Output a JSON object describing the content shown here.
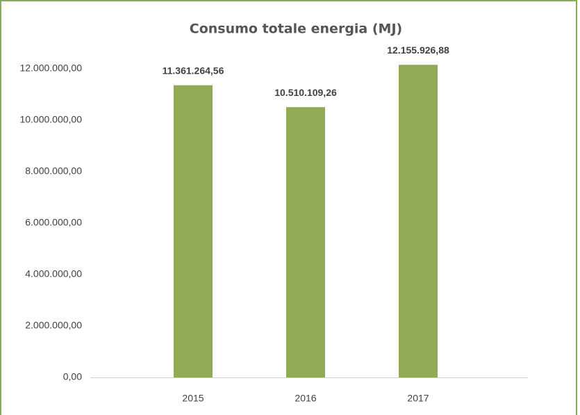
{
  "chart_data": {
    "type": "bar",
    "title": "Consumo totale energia (MJ)",
    "categories": [
      "2015",
      "2016",
      "2017"
    ],
    "values": [
      11361264.56,
      10510109.26,
      12155926.88
    ],
    "value_labels": [
      "11.361.264,56",
      "10.510.109,26",
      "12.155.926,88"
    ],
    "color": "#8fac55",
    "ylim": [
      0,
      12000000
    ],
    "yticks": [
      {
        "value": 0,
        "label": "0,00"
      },
      {
        "value": 2000000,
        "label": "2.000.000,00"
      },
      {
        "value": 4000000,
        "label": "4.000.000,00"
      },
      {
        "value": 6000000,
        "label": "6.000.000,00"
      },
      {
        "value": 8000000,
        "label": "8.000.000,00"
      },
      {
        "value": 10000000,
        "label": "10.000.000,00"
      },
      {
        "value": 12000000,
        "label": "12.000.000,00"
      }
    ],
    "grid": false
  }
}
